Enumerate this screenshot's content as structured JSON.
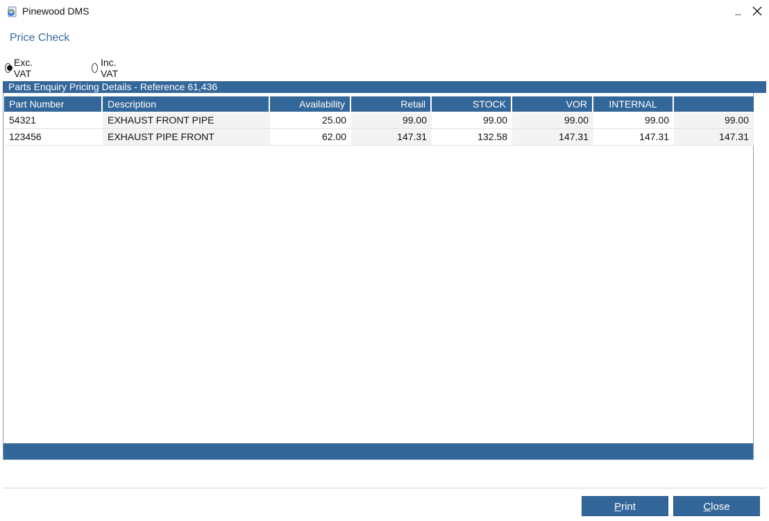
{
  "window": {
    "title": "Pinewood DMS",
    "more_label": "...",
    "close_icon": "close-icon"
  },
  "page": {
    "title": "Price Check"
  },
  "vat_options": [
    {
      "label": "Exc. VAT",
      "checked": true
    },
    {
      "label": "Inc. VAT",
      "checked": false
    }
  ],
  "panel": {
    "header": "Parts Enquiry Pricing Details - Reference 61,436"
  },
  "table": {
    "columns": [
      {
        "label": "Part Number"
      },
      {
        "label": "Description"
      },
      {
        "label": "Availability"
      },
      {
        "label": "Retail"
      },
      {
        "label": "STOCK"
      },
      {
        "label": "VOR"
      },
      {
        "label": "INTERNAL"
      },
      {
        "label": ""
      }
    ],
    "rows": [
      [
        "54321",
        "EXHAUST FRONT PIPE",
        "25.00",
        "99.00",
        "99.00",
        "99.00",
        "99.00",
        "99.00"
      ],
      [
        "123456",
        "EXHAUST PIPE FRONT",
        "62.00",
        "147.31",
        "132.58",
        "147.31",
        "147.31",
        "147.31"
      ]
    ]
  },
  "buttons": {
    "print": {
      "first": "P",
      "rest": "rint"
    },
    "close": {
      "first": "C",
      "rest": "lose"
    }
  },
  "colors": {
    "accent": "#336699",
    "title_text": "#3c6a9c"
  }
}
